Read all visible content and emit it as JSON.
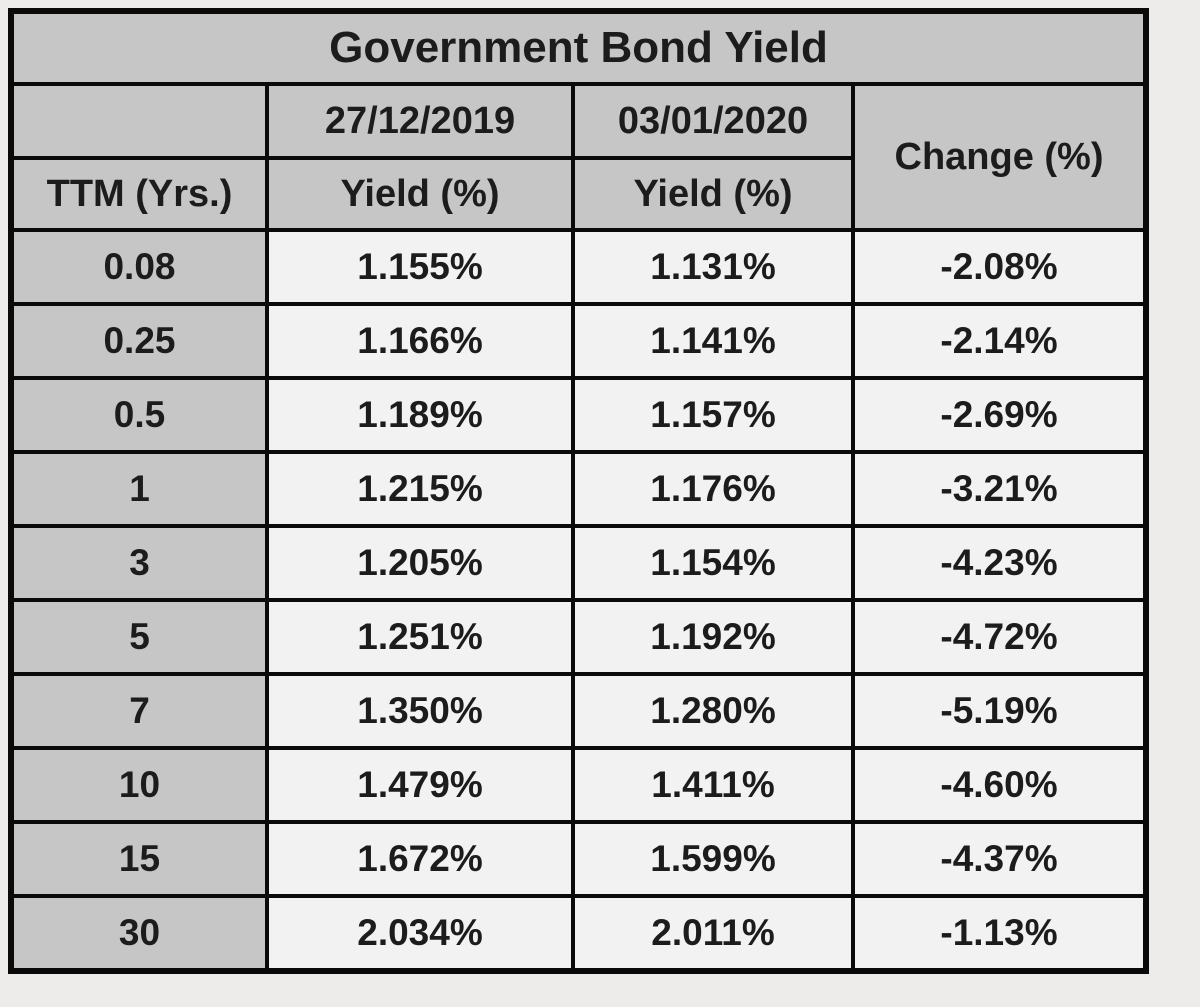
{
  "table": {
    "title": "Government Bond Yield",
    "header": {
      "ttm_label": "TTM (Yrs.)",
      "date_1": "27/12/2019",
      "date_2": "03/01/2020",
      "yield_label_1": "Yield (%)",
      "yield_label_2": "Yield (%)",
      "change_label": "Change (%)"
    },
    "rows": [
      {
        "ttm": "0.08",
        "yield_1": "1.155%",
        "yield_2": "1.131%",
        "change": "-2.08%"
      },
      {
        "ttm": "0.25",
        "yield_1": "1.166%",
        "yield_2": "1.141%",
        "change": "-2.14%"
      },
      {
        "ttm": "0.5",
        "yield_1": "1.189%",
        "yield_2": "1.157%",
        "change": "-2.69%"
      },
      {
        "ttm": "1",
        "yield_1": "1.215%",
        "yield_2": "1.176%",
        "change": "-3.21%"
      },
      {
        "ttm": "3",
        "yield_1": "1.205%",
        "yield_2": "1.154%",
        "change": "-4.23%"
      },
      {
        "ttm": "5",
        "yield_1": "1.251%",
        "yield_2": "1.192%",
        "change": "-4.72%"
      },
      {
        "ttm": "7",
        "yield_1": "1.350%",
        "yield_2": "1.280%",
        "change": "-5.19%"
      },
      {
        "ttm": "10",
        "yield_1": "1.479%",
        "yield_2": "1.411%",
        "change": "-4.60%"
      },
      {
        "ttm": "15",
        "yield_1": "1.672%",
        "yield_2": "1.599%",
        "change": "-4.37%"
      },
      {
        "ttm": "30",
        "yield_1": "2.034%",
        "yield_2": "2.011%",
        "change": "-1.13%"
      }
    ]
  },
  "colors": {
    "header_bg": "#c6c6c6",
    "cell_bg": "#f2f2f2",
    "border": "#0a0a0a",
    "text": "#1c1c1c"
  },
  "chart_data": {
    "type": "table",
    "title": "Government Bond Yield",
    "columns": [
      "TTM (Yrs.)",
      "27/12/2019 Yield (%)",
      "03/01/2020 Yield (%)",
      "Change (%)"
    ],
    "rows": [
      [
        0.08,
        1.155,
        1.131,
        -2.08
      ],
      [
        0.25,
        1.166,
        1.141,
        -2.14
      ],
      [
        0.5,
        1.189,
        1.157,
        -2.69
      ],
      [
        1,
        1.215,
        1.176,
        -3.21
      ],
      [
        3,
        1.205,
        1.154,
        -4.23
      ],
      [
        5,
        1.251,
        1.192,
        -4.72
      ],
      [
        7,
        1.35,
        1.28,
        -5.19
      ],
      [
        10,
        1.479,
        1.411,
        -4.6
      ],
      [
        15,
        1.672,
        1.599,
        -4.37
      ],
      [
        30,
        2.034,
        2.011,
        -1.13
      ]
    ]
  }
}
